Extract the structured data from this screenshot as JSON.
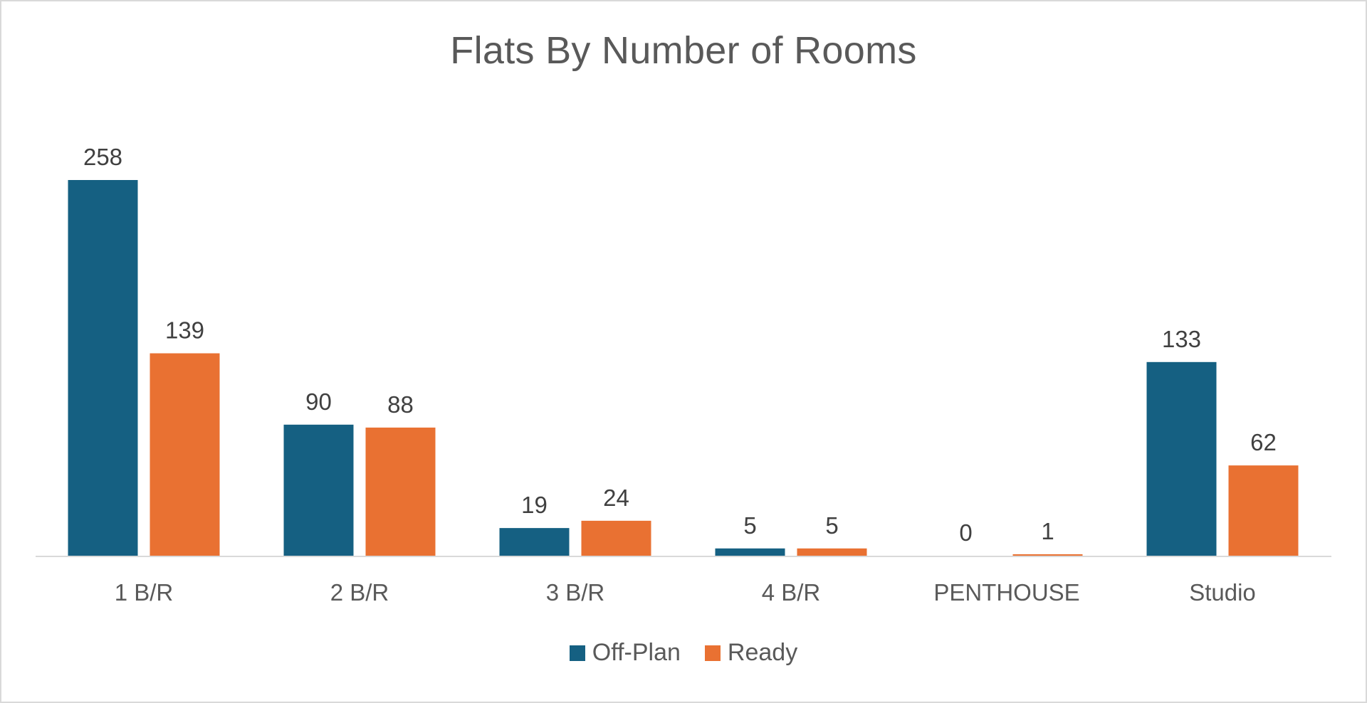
{
  "chart_data": {
    "type": "bar",
    "title": "Flats By Number of Rooms",
    "categories": [
      "1 B/R",
      "2 B/R",
      "3 B/R",
      "4 B/R",
      "PENTHOUSE",
      "Studio"
    ],
    "series": [
      {
        "name": "Off-Plan",
        "color": "#156082",
        "values": [
          258,
          90,
          19,
          5,
          0,
          133
        ]
      },
      {
        "name": "Ready",
        "color": "#E97132",
        "values": [
          139,
          88,
          24,
          5,
          1,
          62
        ]
      }
    ],
    "xlabel": "",
    "ylabel": "",
    "ylim": [
      0,
      258
    ],
    "grid": false,
    "data_labels": true,
    "legend_position": "bottom"
  }
}
